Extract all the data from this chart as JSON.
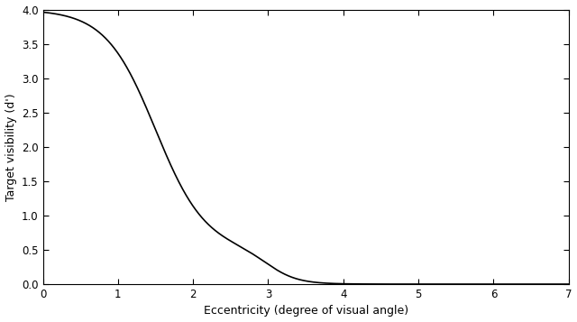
{
  "xlabel": "Eccentricity (degree of visual angle)",
  "ylabel": "Target visibility (d')",
  "xlim": [
    0,
    7
  ],
  "ylim": [
    0,
    4
  ],
  "xticks": [
    0,
    1,
    2,
    3,
    4,
    5,
    6,
    7
  ],
  "yticks": [
    0,
    0.5,
    1.0,
    1.5,
    2.0,
    2.5,
    3.0,
    3.5,
    4.0
  ],
  "line_color": "#000000",
  "line_width": 1.2,
  "bg_color": "#ffffff",
  "figsize": [
    6.4,
    3.57
  ],
  "dpi": 100,
  "data_x": [
    0.0,
    0.2,
    0.5,
    0.8,
    1.0,
    1.2,
    1.4,
    1.6,
    1.8,
    2.0,
    2.2,
    2.5,
    2.7,
    3.0,
    3.2,
    3.5,
    4.0,
    5.0,
    6.0,
    7.0
  ],
  "data_y": [
    4.0,
    3.85,
    3.65,
    3.3,
    3.0,
    2.6,
    2.1,
    1.65,
    1.25,
    0.95,
    0.65,
    0.35,
    0.25,
    0.18,
    0.12,
    0.07,
    0.04,
    0.02,
    0.01,
    0.005
  ]
}
